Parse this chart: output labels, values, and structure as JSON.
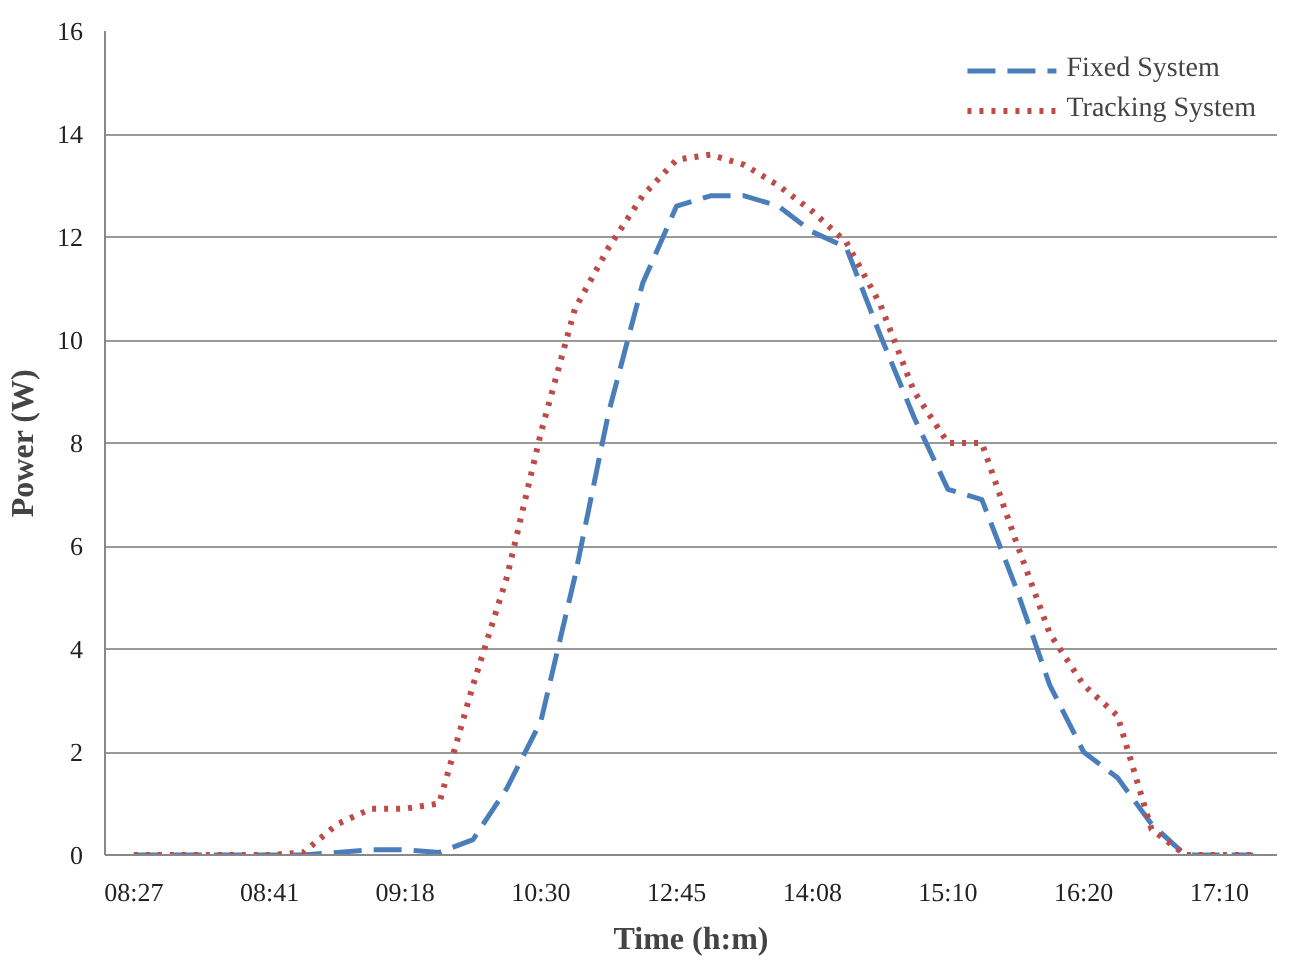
{
  "chart_data": {
    "type": "line",
    "xlabel": "Time (h:m)",
    "ylabel": "Power (W)",
    "categories": [
      "08:27",
      null,
      null,
      null,
      "08:41",
      null,
      null,
      null,
      "09:18",
      null,
      null,
      null,
      "10:30",
      null,
      null,
      null,
      "12:45",
      null,
      null,
      null,
      "14:08",
      null,
      null,
      null,
      "15:10",
      null,
      null,
      null,
      "16:20",
      null,
      null,
      null,
      "17:10",
      null
    ],
    "series": [
      {
        "name": "Fixed System",
        "color": "#4a7ebb",
        "line_style": "dashed",
        "values": [
          0,
          0,
          0,
          0,
          0,
          0,
          0.05,
          0.1,
          0.1,
          0.05,
          0.3,
          1.3,
          2.6,
          5.4,
          8.6,
          11.1,
          12.6,
          12.8,
          12.8,
          12.6,
          12.1,
          11.8,
          10.1,
          8.5,
          7.1,
          6.9,
          5.2,
          3.3,
          2.0,
          1.5,
          0.6,
          0,
          0,
          0
        ]
      },
      {
        "name": "Tracking System",
        "color": "#be4b48",
        "line_style": "dotted",
        "values": [
          0,
          0,
          0,
          0,
          0,
          0.05,
          0.6,
          0.9,
          0.9,
          1.0,
          3.3,
          5.4,
          8.2,
          10.6,
          11.8,
          12.8,
          13.5,
          13.6,
          13.4,
          13.0,
          12.5,
          11.9,
          10.7,
          9.0,
          8.0,
          8.0,
          6.1,
          4.3,
          3.3,
          2.7,
          0.5,
          0,
          0,
          0
        ]
      }
    ],
    "ylim": [
      0,
      16
    ],
    "yticks": [
      0,
      2,
      4,
      6,
      8,
      10,
      12,
      14,
      16
    ],
    "grid": "y",
    "legend": "top right"
  }
}
